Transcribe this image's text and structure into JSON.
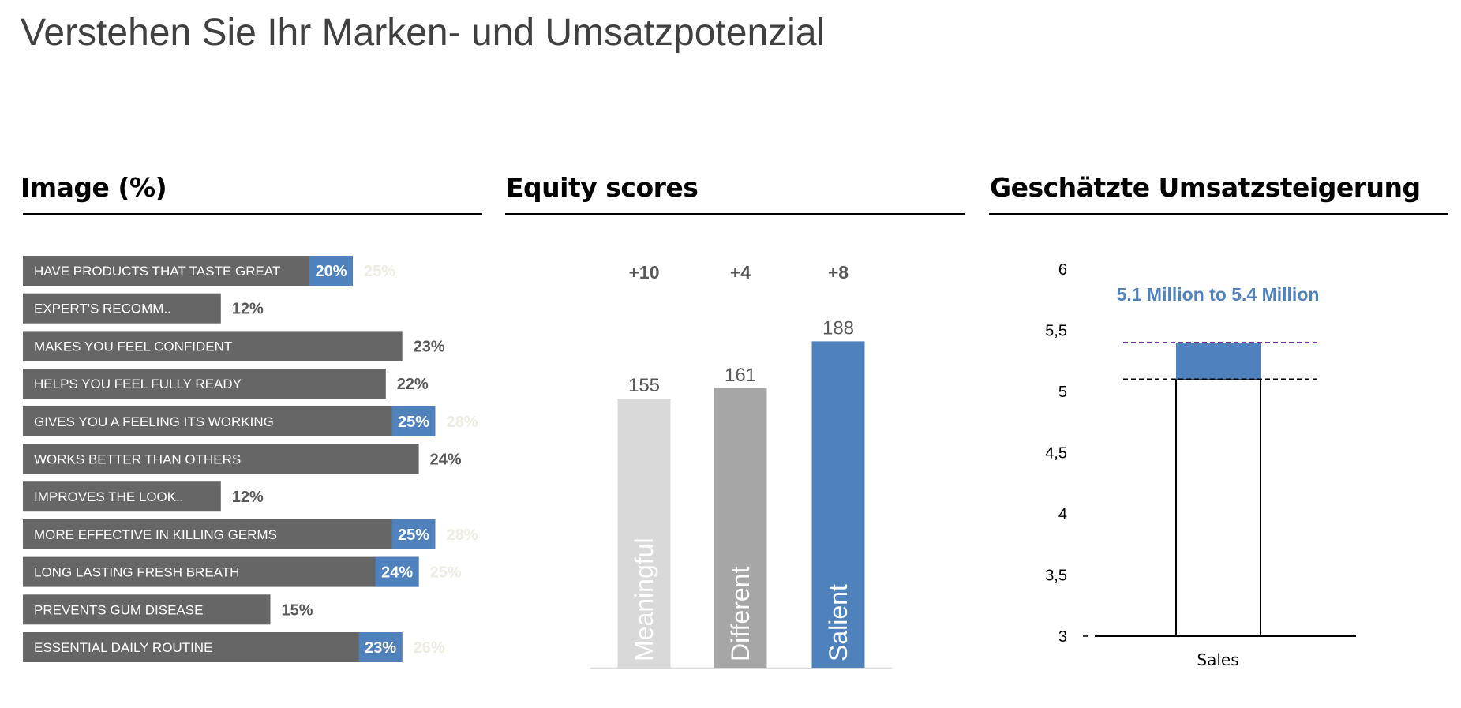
{
  "page_title": "Verstehen Sie Ihr Marken- und Umsatzpotenzial",
  "colors": {
    "bar_dark": "#666666",
    "accent": "#4f81bd",
    "light_gray": "#d9d9d9",
    "mid_gray": "#a6a6a6",
    "faint_text": "#eeece1",
    "text_gray": "#595959",
    "dashed_purple": "#7030a0"
  },
  "panels": {
    "image": {
      "title": "Image (%)"
    },
    "equity": {
      "title": "Equity scores"
    },
    "sales": {
      "title": "Geschätzte Umsatzsteigerung"
    }
  },
  "chart_data": [
    {
      "type": "bar",
      "orientation": "horizontal",
      "title": "Image (%)",
      "categories": [
        "HAVE PRODUCTS THAT TASTE GREAT",
        "EXPERT'S RECOMM..",
        "MAKES YOU FEEL CONFIDENT",
        "HELPS YOU FEEL FULLY READY",
        "GIVES YOU A FEELING ITS WORKING",
        "WORKS BETTER THAN OTHERS",
        "IMPROVES THE LOOK..",
        "MORE EFFECTIVE IN KILLING GERMS",
        "LONG LASTING FRESH BREATH",
        "PREVENTS GUM DISEASE",
        "ESSENTIAL DAILY ROUTINE"
      ],
      "values": [
        20,
        12,
        23,
        22,
        25,
        24,
        12,
        25,
        24,
        15,
        23
      ],
      "value_labels": [
        "20%",
        "12%",
        "23%",
        "22%",
        "25%",
        "24%",
        "12%",
        "25%",
        "24%",
        "15%",
        "23%"
      ],
      "highlighted": [
        true,
        false,
        false,
        false,
        true,
        false,
        false,
        true,
        true,
        false,
        true
      ],
      "potential_labels": [
        "25%",
        "",
        "",
        "",
        "28%",
        "",
        "",
        "28%",
        "25%",
        "",
        "26%"
      ]
    },
    {
      "type": "bar",
      "title": "Equity scores",
      "categories": [
        "Meaningful",
        "Different",
        "Salient"
      ],
      "values": [
        155,
        161,
        188
      ],
      "value_labels": [
        "155",
        "161",
        "188"
      ],
      "deltas": [
        "+10",
        "+4",
        "+8"
      ],
      "colors": [
        "#d9d9d9",
        "#a6a6a6",
        "#4f81bd"
      ]
    },
    {
      "type": "bar",
      "title": "Geschätzte Umsatzsteigerung",
      "categories": [
        "Sales"
      ],
      "range_low": 5.1,
      "range_high": 5.4,
      "annotation": "5.1 Million to 5.4 Million",
      "ylim": [
        3,
        6
      ],
      "yticks": [
        3,
        3.5,
        4,
        4.5,
        5,
        5.5,
        6
      ],
      "ytick_labels": [
        "3",
        "3,5",
        "4",
        "4,5",
        "5",
        "5,5",
        "6"
      ],
      "grid": false
    }
  ]
}
